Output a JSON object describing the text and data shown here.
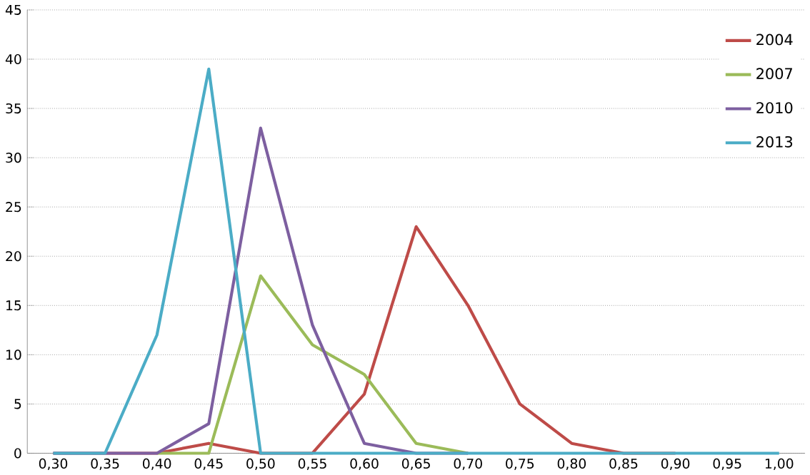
{
  "chart_data": {
    "type": "line",
    "categories": [
      "0,30",
      "0,35",
      "0,40",
      "0,45",
      "0,50",
      "0,55",
      "0,60",
      "0,65",
      "0,70",
      "0,75",
      "0,80",
      "0,85",
      "0,90",
      "0,95",
      "1,00"
    ],
    "series": [
      {
        "name": "2004",
        "color": "#be4b48",
        "values": [
          0,
          0,
          0,
          1,
          0,
          0,
          6,
          23,
          15,
          5,
          1,
          0,
          0,
          null,
          null
        ]
      },
      {
        "name": "2007",
        "color": "#9bbb59",
        "values": [
          null,
          null,
          0,
          0,
          18,
          11,
          8,
          1,
          0,
          null,
          null,
          null,
          null,
          null,
          null
        ]
      },
      {
        "name": "2010",
        "color": "#7d5fa0",
        "values": [
          0,
          0,
          0,
          3,
          33,
          13,
          1,
          0,
          0,
          null,
          null,
          null,
          null,
          null,
          null
        ]
      },
      {
        "name": "2013",
        "color": "#4bacc6",
        "values": [
          0,
          0,
          12,
          39,
          0,
          0,
          0,
          0,
          0,
          0,
          0,
          0,
          0,
          0,
          0
        ]
      }
    ],
    "ylim": [
      0,
      45
    ],
    "yticks": [
      0,
      5,
      10,
      15,
      20,
      25,
      30,
      35,
      40,
      45
    ],
    "grid": "y",
    "legend": "top right",
    "marker": "none",
    "line_style": "solid"
  }
}
